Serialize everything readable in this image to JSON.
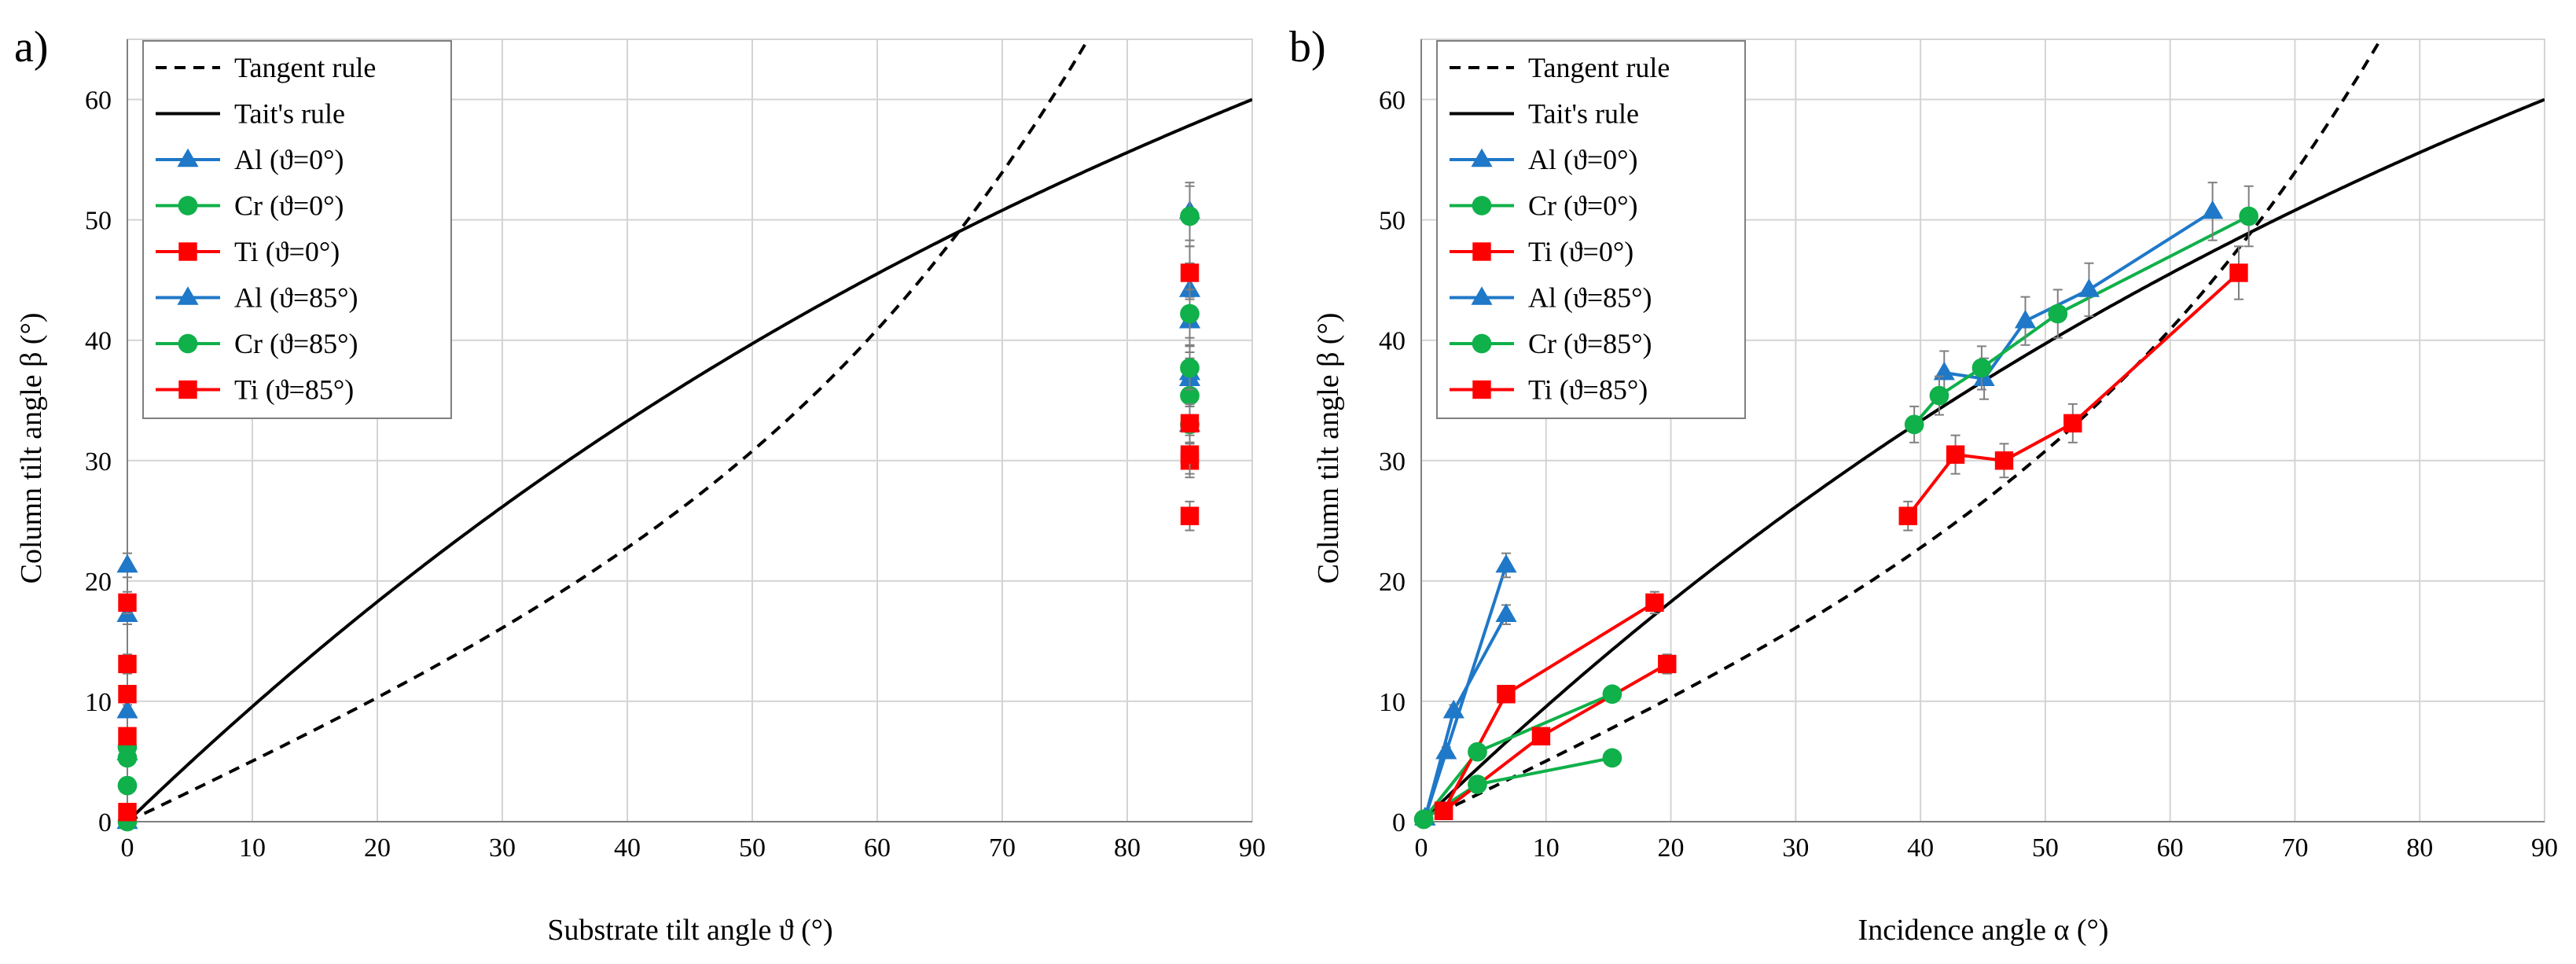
{
  "colors": {
    "al": "#1f78c8",
    "cr": "#10b04a",
    "ti": "#ff0000",
    "rule": "#000000",
    "grid": "#d4d4d4"
  },
  "chart_data": [
    {
      "type": "line",
      "panel_label": "a)",
      "xlabel": "Substrate tilt angle ϑ (°)",
      "ylabel": "Column tilt angle β (°)",
      "xlim": [
        0,
        90
      ],
      "ylim": [
        0,
        65
      ],
      "xticks": [
        0,
        10,
        20,
        30,
        40,
        50,
        60,
        70,
        80,
        90
      ],
      "yticks": [
        0,
        10,
        20,
        30,
        40,
        50,
        60
      ],
      "grid": true,
      "legend_position": "top-left",
      "legend": [
        "Tangent rule",
        "Tait's rule",
        "Al (ϑ=0°)",
        "Cr (ϑ=0°)",
        "Ti (ϑ=0°)",
        "Al (ϑ=85°)",
        "Cr (ϑ=85°)",
        "Ti (ϑ=85°)"
      ],
      "curves": [
        {
          "name": "Tangent rule",
          "rule": "tangent",
          "style": "dashed"
        },
        {
          "name": "Tait's rule",
          "rule": "tait",
          "style": "solid"
        }
      ],
      "series": [
        {
          "name": "Al (ϑ=0°)",
          "material": "al",
          "marker": "triangle",
          "x": [
            0,
            0,
            0,
            0,
            0
          ],
          "y": [
            0,
            9.2,
            17.2,
            21.3,
            5.7
          ],
          "err": [
            0,
            0.5,
            0.8,
            1.0,
            0.4
          ],
          "line": false
        },
        {
          "name": "Cr (ϑ=0°)",
          "material": "cr",
          "marker": "circle",
          "x": [
            0,
            0,
            0,
            0
          ],
          "y": [
            0,
            3.0,
            5.3,
            6.2
          ],
          "err": [
            0,
            0.4,
            0.5,
            0.5
          ],
          "line": false
        },
        {
          "name": "Ti (ϑ=0°)",
          "material": "ti",
          "marker": "square",
          "x": [
            0,
            0,
            0,
            0,
            0
          ],
          "y": [
            0.8,
            7.1,
            10.6,
            13.1,
            18.2
          ],
          "err": [
            0.3,
            0.6,
            0.7,
            0.8,
            0.9
          ],
          "line": false
        },
        {
          "name": "Al (ϑ=85°)",
          "material": "al",
          "marker": "triangle",
          "x": [
            85,
            85,
            85,
            85,
            85,
            85
          ],
          "y": [
            36.8,
            37.3,
            41.6,
            44.2,
            50.7,
            33.0
          ],
          "err": [
            1.7,
            1.7,
            2.0,
            2.2,
            2.4,
            1.5
          ],
          "line": false
        },
        {
          "name": "Cr (ϑ=85°)",
          "material": "cr",
          "marker": "circle",
          "x": [
            85,
            85,
            85,
            85,
            85
          ],
          "y": [
            33.0,
            35.4,
            37.7,
            42.2,
            50.3
          ],
          "err": [
            1.5,
            1.6,
            1.8,
            2.0,
            2.5
          ],
          "line": false
        },
        {
          "name": "Ti (ϑ=85°)",
          "material": "ti",
          "marker": "square",
          "x": [
            85,
            85,
            85,
            85,
            85
          ],
          "y": [
            25.4,
            30.0,
            30.5,
            33.1,
            45.6
          ],
          "err": [
            1.2,
            1.4,
            1.6,
            1.6,
            2.2
          ],
          "line": false
        }
      ]
    },
    {
      "type": "line",
      "panel_label": "b)",
      "xlabel": "Incidence angle α (°)",
      "ylabel": "Column tilt angle β (°)",
      "xlim": [
        0,
        90
      ],
      "ylim": [
        0,
        65
      ],
      "xticks": [
        0,
        10,
        20,
        30,
        40,
        50,
        60,
        70,
        80,
        90
      ],
      "yticks": [
        0,
        10,
        20,
        30,
        40,
        50,
        60
      ],
      "grid": true,
      "legend_position": "top-left",
      "legend": [
        "Tangent rule",
        "Tait's rule",
        "Al (ϑ=0°)",
        "Cr (ϑ=0°)",
        "Ti (ϑ=0°)",
        "Al (ϑ=85°)",
        "Cr (ϑ=85°)",
        "Ti (ϑ=85°)"
      ],
      "curves": [
        {
          "name": "Tangent rule",
          "rule": "tangent",
          "style": "dashed"
        },
        {
          "name": "Tait's rule",
          "rule": "tait",
          "style": "solid"
        }
      ],
      "series": [
        {
          "name": "Al (ϑ=0°)",
          "material": "al",
          "marker": "triangle",
          "x": [
            0.3,
            2.0,
            6.8
          ],
          "y": [
            0.3,
            5.8,
            21.3
          ],
          "err": [
            0.2,
            0.4,
            1.0
          ],
          "line": true
        },
        {
          "name": "Al (ϑ=0°)",
          "material": "al",
          "marker": "triangle",
          "x": [
            0.3,
            2.6,
            6.8
          ],
          "y": [
            0.3,
            9.2,
            17.2
          ],
          "err": [
            0.2,
            0.5,
            0.8
          ],
          "line": true
        },
        {
          "name": "Cr (ϑ=0°)",
          "material": "cr",
          "marker": "circle",
          "x": [
            0.2,
            4.5,
            15.3
          ],
          "y": [
            0.2,
            5.8,
            10.6
          ],
          "err": [
            0.2,
            0.5,
            0.5
          ],
          "line": true
        },
        {
          "name": "Cr (ϑ=0°)",
          "material": "cr",
          "marker": "circle",
          "x": [
            0.2,
            4.5,
            15.3
          ],
          "y": [
            0.2,
            3.1,
            5.3
          ],
          "err": [
            0.2,
            0.4,
            0.4
          ],
          "line": true
        },
        {
          "name": "Ti (ϑ=0°)",
          "material": "ti",
          "marker": "square",
          "x": [
            1.8,
            6.8,
            18.7
          ],
          "y": [
            0.9,
            10.6,
            18.2
          ],
          "err": [
            0.3,
            0.7,
            0.9
          ],
          "line": true
        },
        {
          "name": "Ti (ϑ=0°)",
          "material": "ti",
          "marker": "square",
          "x": [
            1.8,
            9.6,
            19.7
          ],
          "y": [
            0.9,
            7.1,
            13.1
          ],
          "err": [
            0.3,
            0.6,
            0.8
          ],
          "line": true
        },
        {
          "name": "Al (ϑ=85°)",
          "material": "al",
          "marker": "triangle",
          "x": [
            41.9,
            45.1,
            48.4,
            53.5,
            63.4
          ],
          "y": [
            37.3,
            36.8,
            41.6,
            44.2,
            50.7
          ],
          "err": [
            1.8,
            1.7,
            2.0,
            2.2,
            2.4
          ],
          "line": true
        },
        {
          "name": "Cr (ϑ=85°)",
          "material": "cr",
          "marker": "circle",
          "x": [
            39.5,
            41.5,
            44.9,
            51.0,
            66.3
          ],
          "y": [
            33.0,
            35.4,
            37.7,
            42.2,
            50.3
          ],
          "err": [
            1.5,
            1.6,
            1.8,
            2.0,
            2.5
          ],
          "line": true
        },
        {
          "name": "Ti (ϑ=85°)",
          "material": "ti",
          "marker": "square",
          "x": [
            39.0,
            42.8,
            46.7,
            52.2,
            65.5
          ],
          "y": [
            25.4,
            30.5,
            30.0,
            33.1,
            45.6
          ],
          "err": [
            1.2,
            1.6,
            1.4,
            1.6,
            2.2
          ],
          "line": true
        }
      ]
    }
  ]
}
